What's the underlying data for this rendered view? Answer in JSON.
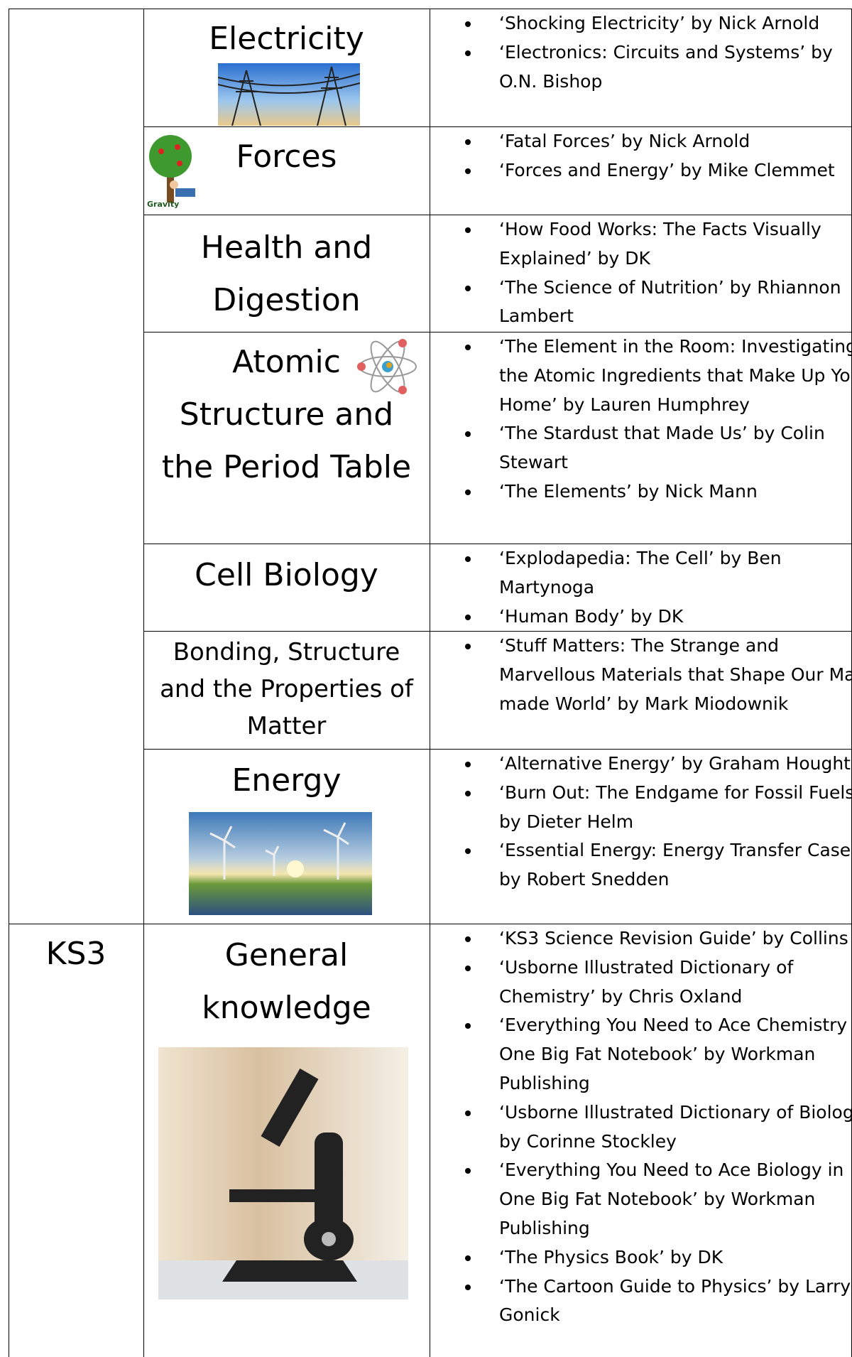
{
  "rows": [
    {
      "topic": "Electricity",
      "books": [
        "‘Shocking Electricity’ by Nick Arnold",
        "‘Electronics: Circuits and Systems’ by O.N. Bishop"
      ]
    },
    {
      "topic": "Forces",
      "books": [
        "‘Fatal Forces’ by Nick Arnold",
        "‘Forces and Energy’ by Mike Clemmet"
      ]
    },
    {
      "topic": "Health and Digestion",
      "books": [
        "‘How Food Works: The Facts Visually Explained’ by DK",
        "‘The Science of Nutrition’ by Rhiannon Lambert"
      ]
    },
    {
      "topic": "Atomic Structure and the Period Table",
      "books": [
        "‘The Element in the Room: Investigating the Atomic Ingredients that Make Up Your Home’ by Lauren Humphrey",
        "‘The Stardust that Made Us’ by Colin Stewart",
        "‘The Elements’ by Nick Mann"
      ]
    },
    {
      "topic": "Cell Biology",
      "books": [
        "‘Explodapedia: The Cell’ by Ben Martynoga",
        "‘Human Body’ by DK"
      ]
    },
    {
      "topic": "Bonding, Structure and the Properties of Matter",
      "books": [
        "‘Stuff Matters: The Strange and Marvellous Materials that Shape Our Man-made World’ by Mark Miodownik"
      ]
    },
    {
      "topic": "Energy",
      "books": [
        "‘Alternative Energy’ by Graham Houghton",
        "‘Burn Out: The Endgame for Fossil Fuels’ by Dieter Helm",
        "‘Essential Energy: Energy Transfer Cased’ by Robert Snedden"
      ]
    },
    {
      "key_stage": "KS3",
      "topic": "General knowledge",
      "books": [
        "‘KS3 Science Revision Guide’ by Collins",
        "‘Usborne Illustrated Dictionary of Chemistry’ by Chris Oxland",
        "‘Everything You Need to Ace Chemistry in One Big Fat Notebook’ by Workman Publishing",
        "‘Usborne Illustrated Dictionary of Biology’ by Corinne Stockley",
        "‘Everything You Need to Ace Biology in One Big Fat Notebook’ by Workman Publishing",
        "‘The Physics Book’ by DK",
        "‘The Cartoon Guide to Physics’ by Larry Gonick"
      ]
    }
  ]
}
